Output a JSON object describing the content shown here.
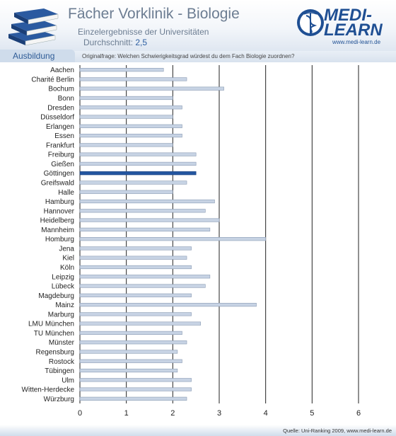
{
  "header": {
    "title": "Fächer Vorklinik - Biologie",
    "subtitle": "Einzelergebnisse der Universitäten",
    "average_label": "Durchschnitt:",
    "average_value": "2,5"
  },
  "logo": {
    "line1": "MEDI-",
    "line2": "LEARN",
    "url": "www.medi-learn.de",
    "icon": "caduceus-icon"
  },
  "tab": {
    "label": "Ausbildung"
  },
  "question": "Originalfrage: Welchen Schwierigkeitsgrad würdest du dem Fach Biologie zuordnen?",
  "footer": {
    "source": "Quelle: Uni-Ranking 2009, www.medi-learn.de"
  },
  "colors": {
    "bar": "#c7d3e4",
    "bar_highlight": "#2456a0",
    "accent": "#1f4f93"
  },
  "chart_data": {
    "type": "bar",
    "orientation": "horizontal",
    "categories": [
      "Aachen",
      "Charité Berlin",
      "Bochum",
      "Bonn",
      "Dresden",
      "Düsseldorf",
      "Erlangen",
      "Essen",
      "Frankfurt",
      "Freiburg",
      "Gießen",
      "Göttingen",
      "Greifswald",
      "Halle",
      "Hamburg",
      "Hannover",
      "Heidelberg",
      "Mannheim",
      "Homburg",
      "Jena",
      "Kiel",
      "Köln",
      "Leipzig",
      "Lübeck",
      "Magdeburg",
      "Mainz",
      "Marburg",
      "LMU München",
      "TU München",
      "Münster",
      "Regensburg",
      "Rostock",
      "Tübingen",
      "Ulm",
      "Witten-Herdecke",
      "Würzburg"
    ],
    "values": [
      1.8,
      2.3,
      3.1,
      2.0,
      2.2,
      2.0,
      2.2,
      2.2,
      2.0,
      2.5,
      2.5,
      2.5,
      2.3,
      2.0,
      2.9,
      2.7,
      3.0,
      2.8,
      4.0,
      2.4,
      2.3,
      2.4,
      2.8,
      2.7,
      2.4,
      3.8,
      2.4,
      2.6,
      2.2,
      2.3,
      2.1,
      2.2,
      2.1,
      2.4,
      2.4,
      2.3
    ],
    "highlight": "Göttingen",
    "xlim": [
      0,
      6
    ],
    "xticks": [
      "0",
      "1",
      "2",
      "3",
      "4",
      "5",
      "6"
    ],
    "grid": true
  }
}
